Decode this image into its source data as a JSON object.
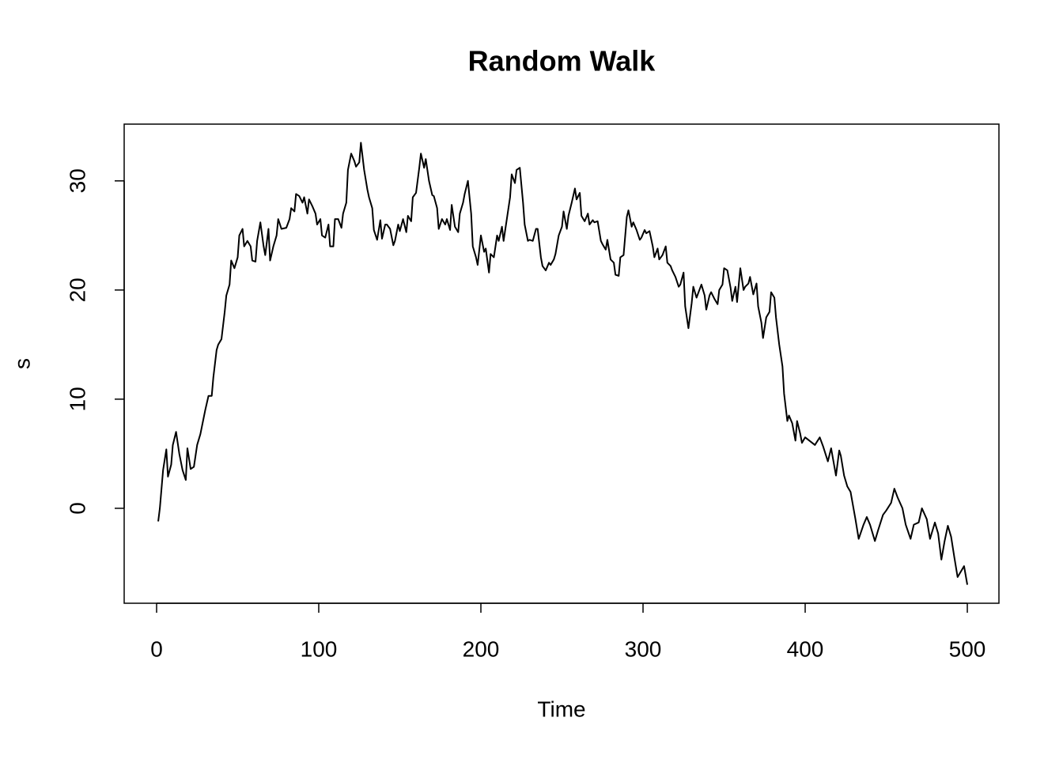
{
  "chart_data": {
    "type": "line",
    "title": "Random Walk",
    "x_label": "Time",
    "y_label": "s",
    "series": [
      {
        "name": "s",
        "color": "#000000",
        "x": [
          1,
          2,
          4,
          6,
          7,
          9,
          10,
          12,
          14,
          16,
          18,
          19,
          21,
          23,
          25,
          27,
          30,
          32,
          34,
          35,
          37,
          38,
          40,
          42,
          43,
          45,
          46,
          48,
          50,
          51,
          53,
          54,
          56,
          58,
          59,
          61,
          62,
          64,
          66,
          67,
          69,
          70,
          72,
          74,
          75,
          77,
          80,
          82,
          83,
          85,
          86,
          88,
          90,
          91,
          93,
          94,
          96,
          98,
          99,
          101,
          102,
          104,
          106,
          107,
          109,
          110,
          112,
          114,
          115,
          117,
          118,
          120,
          122,
          123,
          125,
          126,
          128,
          130,
          131,
          133,
          134,
          136,
          138,
          139,
          141,
          142,
          144,
          146,
          147,
          149,
          150,
          152,
          154,
          155,
          157,
          158,
          160,
          162,
          163,
          165,
          166,
          168,
          170,
          171,
          173,
          174,
          176,
          178,
          179,
          181,
          182,
          184,
          186,
          187,
          189,
          190,
          192,
          194,
          195,
          197,
          198,
          200,
          202,
          203,
          205,
          206,
          208,
          210,
          211,
          213,
          214,
          216,
          218,
          219,
          221,
          222,
          224,
          226,
          227,
          229,
          230,
          232,
          234,
          235,
          237,
          238,
          240,
          242,
          243,
          245,
          246,
          248,
          250,
          251,
          253,
          254,
          256,
          258,
          259,
          261,
          262,
          264,
          266,
          267,
          269,
          270,
          272,
          274,
          275,
          277,
          278,
          280,
          282,
          283,
          285,
          286,
          288,
          290,
          291,
          293,
          294,
          296,
          298,
          299,
          301,
          302,
          304,
          306,
          307,
          309,
          310,
          312,
          314,
          315,
          317,
          318,
          320,
          322,
          323,
          325,
          326,
          328,
          330,
          331,
          333,
          334,
          336,
          338,
          339,
          341,
          342,
          344,
          346,
          347,
          349,
          350,
          352,
          354,
          355,
          357,
          358,
          360,
          362,
          363,
          365,
          366,
          368,
          370,
          371,
          373,
          374,
          376,
          378,
          379,
          381,
          382,
          384,
          386,
          387,
          389,
          390,
          392,
          394,
          395,
          397,
          398,
          400,
          406,
          409,
          411,
          414,
          416,
          419,
          421,
          422,
          424,
          426,
          428,
          431,
          433,
          436,
          438,
          440,
          443,
          445,
          448,
          450,
          453,
          455,
          457,
          460,
          462,
          465,
          467,
          470,
          472,
          475,
          477,
          480,
          482,
          484,
          486,
          488,
          490,
          492,
          494,
          496,
          498,
          500
        ],
        "values": [
          -1.2,
          0,
          3.5,
          5.4,
          2.9,
          4,
          5.8,
          7,
          5,
          3.5,
          2.6,
          5.5,
          3.6,
          3.8,
          5.8,
          6.8,
          9,
          10.3,
          10.3,
          12,
          14.5,
          15,
          15.5,
          18,
          19.5,
          20.5,
          22.7,
          22,
          23,
          25,
          25.6,
          24,
          24.5,
          24,
          22.7,
          22.6,
          24.5,
          26.2,
          24,
          23.2,
          25.6,
          22.7,
          24,
          25,
          26.5,
          25.6,
          25.7,
          26.5,
          27.5,
          27.2,
          28.8,
          28.6,
          28,
          28.5,
          27,
          28.3,
          27.7,
          27,
          26,
          26.5,
          25,
          24.8,
          26,
          24,
          24,
          26.5,
          26.5,
          25.7,
          27,
          28,
          31,
          32.5,
          31.8,
          31.3,
          31.7,
          33.5,
          31,
          29.2,
          28.5,
          27.5,
          25.5,
          24.6,
          26.4,
          24.7,
          26,
          26,
          25.6,
          24.1,
          24.5,
          26,
          25.4,
          26.5,
          25.3,
          26.8,
          26.3,
          28.5,
          28.9,
          31.2,
          32.5,
          31.2,
          32,
          30,
          28.7,
          28.6,
          27.5,
          25.6,
          26.5,
          26,
          26.5,
          25.5,
          27.8,
          25.8,
          25.3,
          27,
          28,
          28.8,
          30,
          27,
          24,
          23,
          22.3,
          25,
          23.5,
          23.8,
          21.6,
          23.3,
          23,
          25,
          24.5,
          25.8,
          24.5,
          26.5,
          28.5,
          30.6,
          29.8,
          31,
          31.2,
          28,
          26,
          24.5,
          24.6,
          24.5,
          25.6,
          25.6,
          23,
          22.2,
          21.8,
          22.5,
          22.3,
          22.8,
          23.3,
          25,
          25.8,
          27.2,
          25.6,
          26.8,
          28,
          29.3,
          28.3,
          28.9,
          26.8,
          26.3,
          27,
          26,
          26.4,
          26.2,
          26.3,
          24.5,
          24.2,
          23.7,
          24.6,
          22.8,
          22.5,
          21.4,
          21.3,
          23,
          23.2,
          26.7,
          27.3,
          25.8,
          26.2,
          25.5,
          24.6,
          24.8,
          25.5,
          25.2,
          25.4,
          24,
          23,
          23.8,
          22.8,
          23.2,
          24,
          22.5,
          22.2,
          21.8,
          21.2,
          20.3,
          20.5,
          21.6,
          18.5,
          16.5,
          18.8,
          20.3,
          19.3,
          19.7,
          20.5,
          19.5,
          18.2,
          19.5,
          19.8,
          19.2,
          18.7,
          20,
          20.5,
          22,
          21.8,
          20.2,
          19,
          20.3,
          18.9,
          22,
          20,
          20.3,
          20.6,
          21.2,
          19.6,
          20.6,
          18.5,
          17,
          15.6,
          17.5,
          18,
          19.8,
          19.3,
          17.5,
          15,
          13,
          10.5,
          8,
          8.5,
          7.8,
          6.2,
          8,
          6.8,
          6,
          6.5,
          5.8,
          6.5,
          5.7,
          4.3,
          5.5,
          3,
          5.3,
          4.8,
          3,
          2,
          1.5,
          -1,
          -2.8,
          -1.5,
          -0.8,
          -1.5,
          -3,
          -2,
          -0.6,
          -0.2,
          0.5,
          1.8,
          1,
          0,
          -1.5,
          -2.8,
          -1.5,
          -1.3,
          0,
          -1,
          -2.8,
          -1.3,
          -2.3,
          -4.7,
          -3,
          -1.6,
          -2.6,
          -4.5,
          -6.3,
          -5.8,
          -5.3,
          -7
        ]
      }
    ],
    "xlim": [
      -20,
      519.5
    ],
    "xticks": [
      0,
      100,
      200,
      300,
      400,
      500
    ],
    "ylim": [
      -8.7,
      35.2
    ],
    "yticks": [
      0,
      10,
      20,
      30
    ],
    "grid": false
  }
}
